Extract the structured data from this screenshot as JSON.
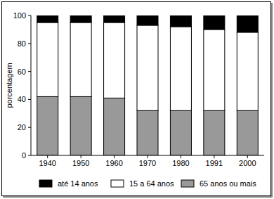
{
  "chart_data": {
    "type": "bar",
    "stacked": true,
    "y_label": "porcentagem",
    "categories": [
      "1940",
      "1950",
      "1960",
      "1970",
      "1980",
      "1991",
      "2000"
    ],
    "series": [
      {
        "name": "até 14 anos",
        "color": "#000000",
        "values": [
          5,
          5,
          5,
          7,
          8,
          10,
          12
        ]
      },
      {
        "name": "15 a 64 anos",
        "color": "#ffffff",
        "values": [
          53,
          53,
          54,
          61,
          60,
          58,
          56
        ]
      },
      {
        "name": "65 anos ou mais",
        "color": "#999999",
        "values": [
          42,
          42,
          41,
          32,
          32,
          32,
          32
        ]
      }
    ],
    "ylim": [
      0,
      100
    ],
    "yticks": [
      0,
      20,
      40,
      60,
      80,
      100
    ],
    "grid": false,
    "legend": "bottom"
  }
}
